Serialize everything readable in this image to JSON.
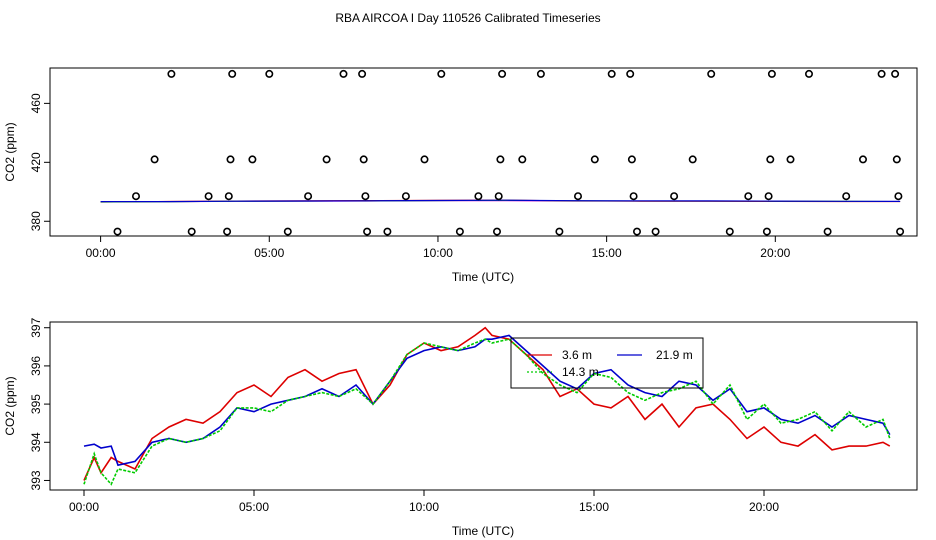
{
  "title": "RBA AIRCOA I  Day 110526  Calibrated Timeseries",
  "colors": {
    "red": "#dd0000",
    "green": "#00cc00",
    "blue": "#0000cc",
    "magenta": "#cc00cc",
    "black": "#000000"
  },
  "chart_data": [
    {
      "type": "scatter",
      "xlabel": "Time (UTC)",
      "ylabel": "CO2 (ppm)",
      "xlim": [
        -1.5,
        24.2
      ],
      "ylim": [
        370,
        484
      ],
      "x_ticks": [
        0,
        5,
        10,
        15,
        20
      ],
      "x_tick_labels": [
        "00:00",
        "05:00",
        "10:00",
        "15:00",
        "20:00"
      ],
      "y_ticks": [
        380,
        420,
        460
      ],
      "y_tick_labels": [
        "380",
        "420",
        "460"
      ],
      "grid": false,
      "standard_points": {
        "x": [
          0.5,
          1.05,
          1.6,
          2.1,
          2.7,
          3.2,
          3.75,
          3.8,
          3.85,
          3.9,
          4.5,
          5.0,
          5.55,
          6.15,
          6.7,
          7.2,
          7.75,
          7.8,
          7.85,
          7.9,
          8.5,
          9.05,
          9.6,
          10.1,
          10.65,
          11.2,
          11.75,
          11.8,
          11.85,
          11.9,
          12.5,
          13.05,
          13.6,
          14.15,
          14.65,
          15.15,
          15.7,
          15.75,
          15.8,
          15.9,
          16.45,
          17.0,
          17.55,
          18.1,
          18.65,
          19.2,
          19.75,
          19.8,
          19.85,
          19.9,
          20.45,
          21.0,
          21.55,
          22.1,
          22.6,
          23.15,
          23.55,
          23.6,
          23.65,
          23.7
        ],
        "y": [
          373,
          397,
          422,
          480,
          373,
          397,
          373,
          397,
          422,
          480,
          422,
          480,
          373,
          397,
          422,
          480,
          480,
          422,
          397,
          373,
          373,
          397,
          422,
          480,
          373,
          397,
          373,
          397,
          422,
          480,
          422,
          480,
          373,
          397,
          422,
          480,
          480,
          422,
          397,
          373,
          373,
          397,
          422,
          480,
          373,
          397,
          373,
          397,
          422,
          480,
          422,
          480,
          373,
          397,
          422,
          480,
          480,
          422,
          397,
          373
        ]
      },
      "lines": {
        "x": [
          0,
          2,
          4,
          6,
          8,
          10,
          12,
          14,
          16,
          18,
          20,
          22,
          23.7
        ],
        "blue": [
          393.9,
          394,
          394.8,
          395.2,
          395.5,
          396.2,
          396.6,
          395.8,
          395.5,
          395.3,
          394.9,
          394.6,
          394.4
        ],
        "green": [
          393.2,
          393.8,
          394.5,
          395.0,
          395.3,
          396.0,
          396.4,
          395.5,
          395.1,
          395.0,
          394.7,
          394.5,
          394.2
        ],
        "red": [
          393.0,
          394.3,
          395.2,
          395.8,
          396.2,
          396.5,
          396.9,
          395.3,
          394.7,
          394.5,
          394.2,
          394.0,
          393.9
        ],
        "magenta": [
          393.5,
          393.8,
          394.4,
          394.8,
          395.0,
          395.5,
          395.8,
          395.0,
          394.6,
          394.5,
          394.3,
          394.2,
          394.1
        ]
      }
    },
    {
      "type": "line",
      "xlabel": "Time (UTC)",
      "ylabel": "CO2 (ppm)",
      "xlim": [
        -1,
        24.5
      ],
      "ylim": [
        392.75,
        397.15
      ],
      "x_ticks": [
        0,
        5,
        10,
        15,
        20
      ],
      "x_tick_labels": [
        "00:00",
        "05:00",
        "10:00",
        "15:00",
        "20:00"
      ],
      "y_ticks": [
        393,
        394,
        395,
        396,
        397
      ],
      "y_tick_labels": [
        "393",
        "394",
        "395",
        "396",
        "397"
      ],
      "grid": false,
      "legend": {
        "placement": "top-center",
        "entries": [
          "3.6 m",
          "21.9 m",
          "14.3 m"
        ]
      },
      "series": [
        {
          "name": "3.6 m",
          "color": "#dd0000",
          "x": [
            0.0,
            0.3,
            0.5,
            0.8,
            1.0,
            1.5,
            2.0,
            2.5,
            3.0,
            3.5,
            4.0,
            4.5,
            5.0,
            5.5,
            6.0,
            6.5,
            7.0,
            7.5,
            8.0,
            8.5,
            9.0,
            9.5,
            10.0,
            10.5,
            11.0,
            11.5,
            11.8,
            12.0,
            12.5,
            13.0,
            13.5,
            14.0,
            14.5,
            15.0,
            15.5,
            16.0,
            16.5,
            17.0,
            17.5,
            18.0,
            18.5,
            19.0,
            19.5,
            20.0,
            20.5,
            21.0,
            21.5,
            22.0,
            22.5,
            23.0,
            23.5,
            23.7
          ],
          "y": [
            393.0,
            393.6,
            393.2,
            393.6,
            393.5,
            393.3,
            394.1,
            394.4,
            394.6,
            394.5,
            394.8,
            395.3,
            395.5,
            395.2,
            395.7,
            395.9,
            395.6,
            395.8,
            395.9,
            395.0,
            395.5,
            396.3,
            396.6,
            396.4,
            396.5,
            396.8,
            397.0,
            396.8,
            396.7,
            396.3,
            395.9,
            395.2,
            395.4,
            395.0,
            394.9,
            395.2,
            394.6,
            395.0,
            394.4,
            394.9,
            395.0,
            394.6,
            394.1,
            394.4,
            394.0,
            393.9,
            394.2,
            393.8,
            393.9,
            393.9,
            394.0,
            393.9
          ]
        },
        {
          "name": "21.9 m",
          "color": "#0000cc",
          "x": [
            0.0,
            0.3,
            0.5,
            0.8,
            1.0,
            1.5,
            2.0,
            2.5,
            3.0,
            3.5,
            4.0,
            4.5,
            5.0,
            5.5,
            6.0,
            6.5,
            7.0,
            7.5,
            8.0,
            8.5,
            9.0,
            9.5,
            10.0,
            10.5,
            11.0,
            11.5,
            11.8,
            12.0,
            12.5,
            13.0,
            13.5,
            14.0,
            14.5,
            15.0,
            15.5,
            16.0,
            16.5,
            17.0,
            17.5,
            18.0,
            18.5,
            19.0,
            19.5,
            20.0,
            20.5,
            21.0,
            21.5,
            22.0,
            22.5,
            23.0,
            23.5,
            23.7
          ],
          "y": [
            393.9,
            393.95,
            393.85,
            393.9,
            393.4,
            393.5,
            394.0,
            394.1,
            394.0,
            394.1,
            394.4,
            394.9,
            394.8,
            395.0,
            395.1,
            395.2,
            395.4,
            395.2,
            395.5,
            395.0,
            395.6,
            396.2,
            396.4,
            396.5,
            396.4,
            396.5,
            396.7,
            396.7,
            396.8,
            396.4,
            396.0,
            395.6,
            395.4,
            395.8,
            395.9,
            395.5,
            395.3,
            395.2,
            395.6,
            395.5,
            395.1,
            395.4,
            394.8,
            394.9,
            394.6,
            394.5,
            394.7,
            394.4,
            394.7,
            394.6,
            394.5,
            394.2
          ]
        },
        {
          "name": "14.3 m",
          "color": "#00cc00",
          "x": [
            0.0,
            0.3,
            0.5,
            0.8,
            1.0,
            1.5,
            2.0,
            2.5,
            3.0,
            3.5,
            4.0,
            4.5,
            5.0,
            5.5,
            6.0,
            6.5,
            7.0,
            7.5,
            8.0,
            8.5,
            9.0,
            9.5,
            10.0,
            10.5,
            11.0,
            11.5,
            11.8,
            12.0,
            12.5,
            13.0,
            13.5,
            14.0,
            14.5,
            15.0,
            15.5,
            16.0,
            16.5,
            17.0,
            17.5,
            18.0,
            18.5,
            19.0,
            19.5,
            20.0,
            20.5,
            21.0,
            21.5,
            22.0,
            22.5,
            23.0,
            23.5,
            23.7
          ],
          "y": [
            392.9,
            393.7,
            393.2,
            392.9,
            393.3,
            393.2,
            393.9,
            394.1,
            394.0,
            394.1,
            394.3,
            394.9,
            394.9,
            394.8,
            395.1,
            395.2,
            395.3,
            395.2,
            395.4,
            395.0,
            395.6,
            396.3,
            396.6,
            396.5,
            396.4,
            396.6,
            396.7,
            396.6,
            396.7,
            396.3,
            395.8,
            395.5,
            395.3,
            395.8,
            395.7,
            395.3,
            395.1,
            395.3,
            395.4,
            395.6,
            395.0,
            395.5,
            394.6,
            395.0,
            394.5,
            394.6,
            394.8,
            394.3,
            394.8,
            394.4,
            394.6,
            394.1
          ]
        }
      ]
    }
  ]
}
